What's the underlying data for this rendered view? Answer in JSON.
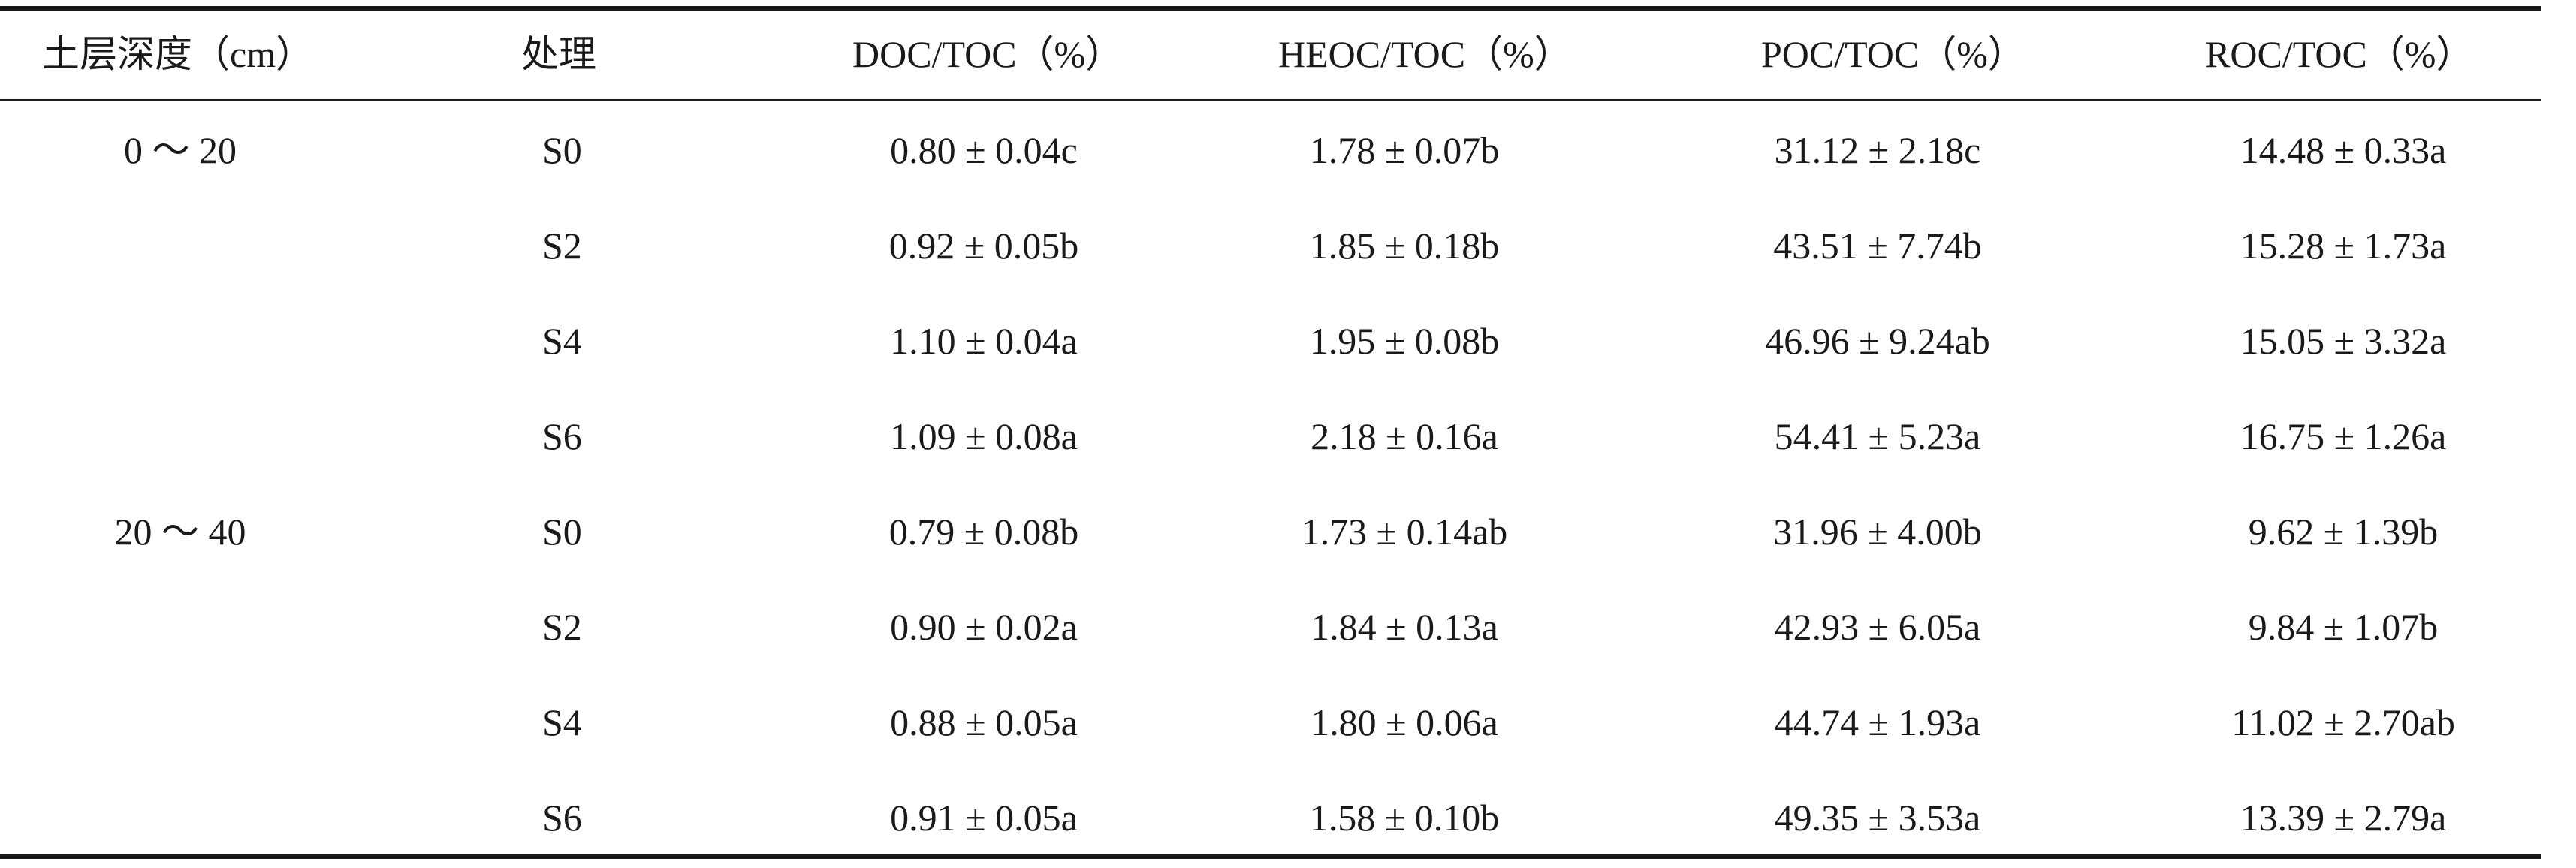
{
  "table": {
    "headers": {
      "depth": "土层深度（cm）",
      "treatment": "处理",
      "doc": "DOC/TOC（%）",
      "heoc": "HEOC/TOC（%）",
      "poc": "POC/TOC（%）",
      "roc": "ROC/TOC（%）"
    },
    "rows": [
      {
        "depth": "0 ～ 20",
        "treatment": "S0",
        "doc": "0.80 ± 0.04c",
        "heoc": "1.78 ± 0.07b",
        "poc": "31.12 ± 2.18c",
        "roc": "14.48 ± 0.33a"
      },
      {
        "depth": "",
        "treatment": "S2",
        "doc": "0.92 ± 0.05b",
        "heoc": "1.85 ± 0.18b",
        "poc": "43.51 ± 7.74b",
        "roc": "15.28 ± 1.73a"
      },
      {
        "depth": "",
        "treatment": "S4",
        "doc": "1.10 ± 0.04a",
        "heoc": "1.95 ± 0.08b",
        "poc": "46.96 ± 9.24ab",
        "roc": "15.05 ± 3.32a"
      },
      {
        "depth": "",
        "treatment": "S6",
        "doc": "1.09 ± 0.08a",
        "heoc": "2.18 ± 0.16a",
        "poc": "54.41 ± 5.23a",
        "roc": "16.75 ± 1.26a"
      },
      {
        "depth": "20 ～ 40",
        "treatment": "S0",
        "doc": "0.79 ± 0.08b",
        "heoc": "1.73 ± 0.14ab",
        "poc": "31.96 ± 4.00b",
        "roc": "9.62 ± 1.39b"
      },
      {
        "depth": "",
        "treatment": "S2",
        "doc": "0.90 ± 0.02a",
        "heoc": "1.84 ± 0.13a",
        "poc": "42.93 ± 6.05a",
        "roc": "9.84 ± 1.07b"
      },
      {
        "depth": "",
        "treatment": "S4",
        "doc": "0.88 ± 0.05a",
        "heoc": "1.80 ± 0.06a",
        "poc": "44.74 ± 1.93a",
        "roc": "11.02 ± 2.70ab"
      },
      {
        "depth": "",
        "treatment": "S6",
        "doc": "0.91 ± 0.05a",
        "heoc": "1.58 ± 0.10b",
        "poc": "49.35 ± 3.53a",
        "roc": "13.39 ± 2.79a"
      }
    ]
  }
}
